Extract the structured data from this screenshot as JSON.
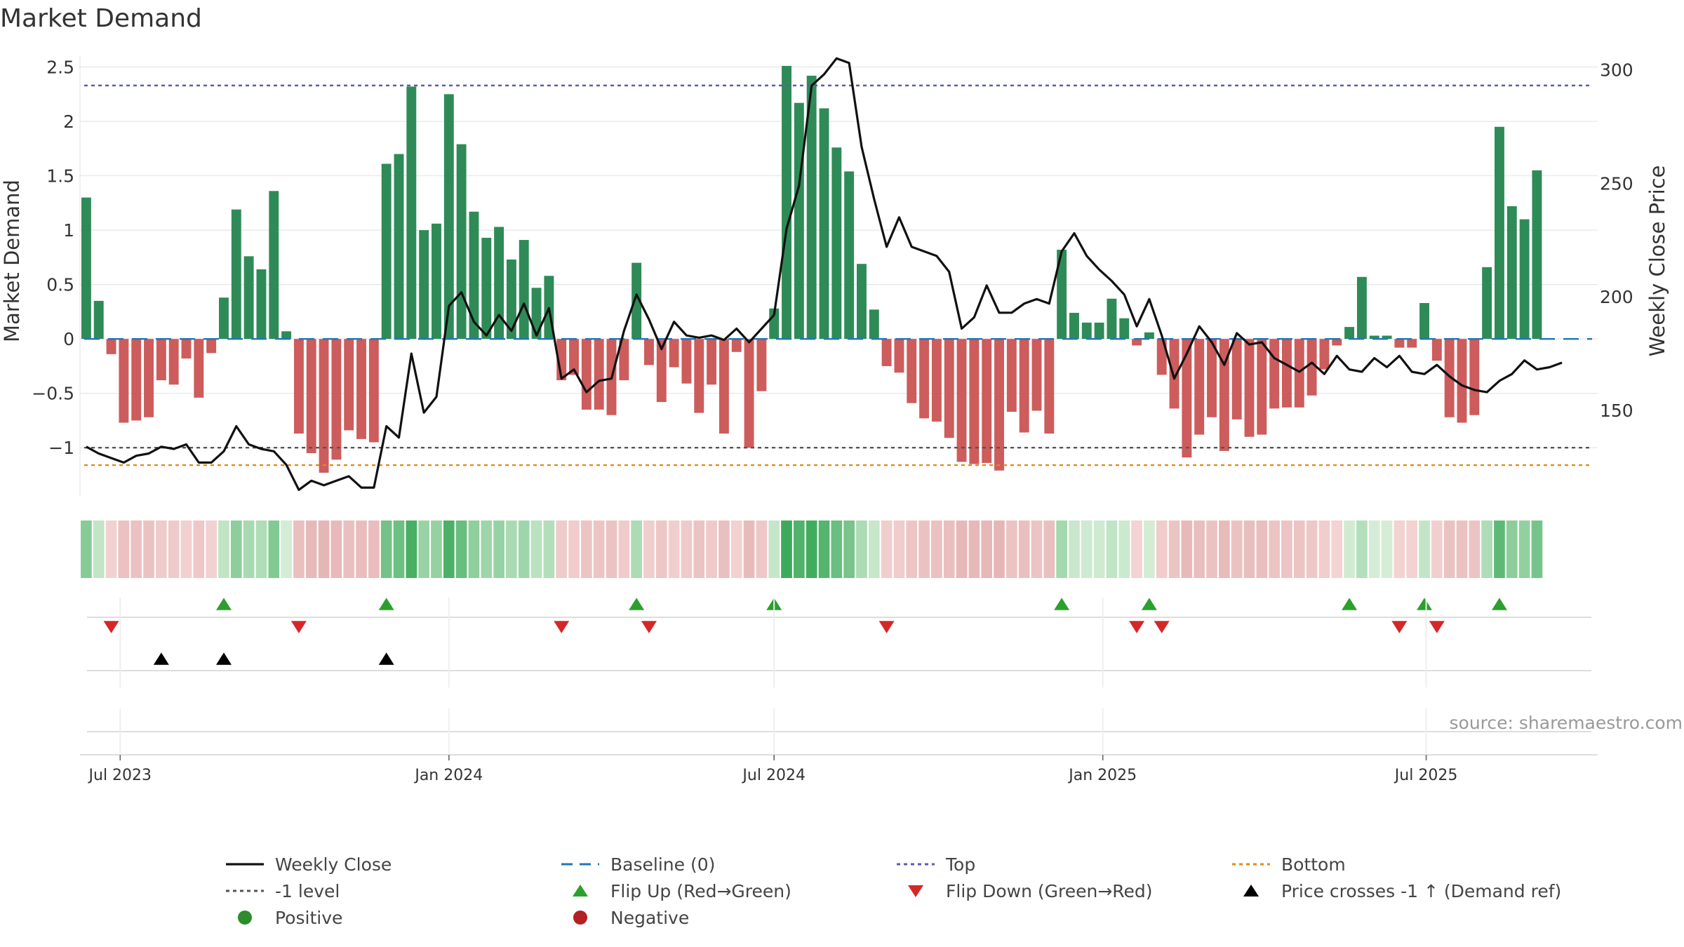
{
  "title": "Market Demand",
  "source": "source: sharemaestro.com",
  "colors": {
    "positive": "#2e8b57",
    "negative": "#cd5c5c",
    "close": "#111111",
    "baseline": "#1f77b4",
    "top": "#5b5bb0",
    "bottom": "#e08a1e",
    "minus_one": "#555555",
    "flip_up": "#2ca02c",
    "flip_down": "#d62728",
    "cross": "#000000",
    "pos_dot": "#2e8b2e",
    "neg_dot": "#b22222"
  },
  "legend": [
    {
      "key": "close",
      "label": "Weekly Close",
      "symbol": "line"
    },
    {
      "key": "baseline",
      "label": "Baseline (0)",
      "symbol": "dash"
    },
    {
      "key": "top",
      "label": "Top",
      "symbol": "dot"
    },
    {
      "key": "bottom",
      "label": "Bottom",
      "symbol": "dot"
    },
    {
      "key": "minus_one",
      "label": "-1 level",
      "symbol": "dot"
    },
    {
      "key": "flip_up",
      "label": "Flip Up (Red→Green)",
      "symbol": "tri-up"
    },
    {
      "key": "flip_down",
      "label": "Flip Down (Green→Red)",
      "symbol": "tri-down"
    },
    {
      "key": "cross",
      "label": "Price crosses -1 ↑ (Demand ref)",
      "symbol": "tri-up"
    },
    {
      "key": "pos_dot",
      "label": "Positive",
      "symbol": "circle"
    },
    {
      "key": "neg_dot",
      "label": "Negative",
      "symbol": "circle"
    }
  ],
  "chart_data": {
    "type": "bar",
    "title": "Market Demand",
    "ylabel": "Market Demand",
    "y2label": "Weekly Close Price",
    "ylim": [
      -1.45,
      2.6
    ],
    "y2lim": [
      112,
      306
    ],
    "yticks": [
      -1,
      -0.5,
      0,
      0.5,
      1,
      1.5,
      2,
      2.5
    ],
    "ytick_labels": [
      "−1",
      "−0.5",
      "0",
      "0.5",
      "1",
      "1.5",
      "2",
      "2.5"
    ],
    "y2ticks": [
      150,
      200,
      250,
      300
    ],
    "y2tick_labels": [
      "150",
      "200",
      "250",
      "300"
    ],
    "x_start": "2023-06-12",
    "week_step_days": 7,
    "x_end": "2025-10-05",
    "xticks": [
      "2023-07-01",
      "2024-01-01",
      "2024-07-01",
      "2025-01-01",
      "2025-07-01"
    ],
    "xtick_labels": [
      "Jul 2023",
      "Jan 2024",
      "Jul 2024",
      "Jan 2025",
      "Jul 2025"
    ],
    "top_level": 2.33,
    "bottom_level": -1.16,
    "minus_one_level": -1,
    "grid": true,
    "legend_position": "bottom",
    "demand": [
      1.3,
      0.35,
      -0.14,
      -0.77,
      -0.75,
      -0.72,
      -0.38,
      -0.42,
      -0.18,
      -0.54,
      -0.13,
      0.38,
      1.19,
      0.76,
      0.64,
      1.36,
      0.07,
      -0.87,
      -1.05,
      -1.23,
      -1.11,
      -0.84,
      -0.92,
      -0.95,
      1.61,
      1.7,
      2.32,
      1.0,
      1.06,
      2.25,
      1.79,
      1.17,
      0.93,
      1.03,
      0.73,
      0.91,
      0.47,
      0.58,
      -0.38,
      -0.33,
      -0.65,
      -0.65,
      -0.7,
      -0.38,
      0.7,
      -0.24,
      -0.58,
      -0.26,
      -0.41,
      -0.68,
      -0.42,
      -0.87,
      -0.12,
      -1.0,
      -0.48,
      0.28,
      2.51,
      2.17,
      2.42,
      2.12,
      1.76,
      1.54,
      0.69,
      0.27,
      -0.25,
      -0.31,
      -0.59,
      -0.73,
      -0.76,
      -0.91,
      -1.13,
      -1.15,
      -1.14,
      -1.21,
      -0.67,
      -0.86,
      -0.66,
      -0.87,
      0.82,
      0.24,
      0.15,
      0.15,
      0.37,
      0.19,
      -0.06,
      0.06,
      -0.33,
      -0.64,
      -1.09,
      -0.88,
      -0.72,
      -1.03,
      -0.74,
      -0.9,
      -0.88,
      -0.64,
      -0.63,
      -0.63,
      -0.52,
      -0.28,
      -0.06,
      0.11,
      0.57,
      0.03,
      0.03,
      -0.08,
      -0.08,
      0.33,
      -0.2,
      -0.72,
      -0.77,
      -0.7,
      0.66,
      1.95,
      1.22,
      1.1,
      1.55
    ],
    "close": [
      134,
      131,
      129,
      127,
      130,
      131,
      134,
      133,
      135,
      127,
      127,
      132,
      143,
      135,
      133,
      132,
      126,
      115,
      119,
      117,
      119,
      121,
      116,
      116,
      143,
      138,
      175,
      149,
      156,
      196,
      202,
      189,
      183,
      192,
      185,
      197,
      183,
      195,
      164,
      168,
      158,
      163,
      164,
      185,
      201,
      190,
      177,
      189,
      183,
      182,
      183,
      181,
      186,
      180,
      186,
      192,
      230,
      249,
      293,
      298,
      305,
      303,
      266,
      243,
      222,
      235,
      222,
      220,
      218,
      211,
      186,
      191,
      205,
      193,
      193,
      197,
      199,
      197,
      220,
      228,
      218,
      212,
      207,
      201,
      187,
      199,
      183,
      164,
      175,
      187,
      180,
      170,
      184,
      179,
      180,
      173,
      170,
      167,
      171,
      166,
      174,
      168,
      167,
      173,
      169,
      174,
      167,
      166,
      170,
      165,
      161,
      159,
      158,
      163,
      166,
      172,
      168,
      169,
      171
    ],
    "flip_up_weeks": [
      11,
      24,
      44,
      55,
      78,
      85,
      101,
      107,
      113
    ],
    "flip_down_weeks": [
      2,
      17,
      38,
      45,
      64,
      84,
      86,
      105,
      108
    ],
    "cross_up_weeks": [
      6,
      11,
      24
    ]
  }
}
